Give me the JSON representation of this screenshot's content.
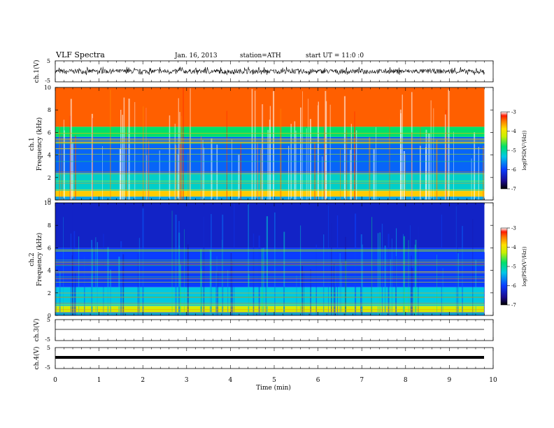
{
  "header": {
    "title": "VLF Spectra",
    "date": "Jan. 16, 2013",
    "station": "station=ATH",
    "start": "start UT =  11:0 :0"
  },
  "chart_data": [
    {
      "type": "line",
      "id": "ch1",
      "ylabel": "ch.1(V)",
      "ylim": [
        -5,
        5
      ],
      "yticks": [
        "5",
        "-5"
      ],
      "signal": {
        "center": 0,
        "amplitude_range": [
          -1.8,
          2.2
        ],
        "character": "broadband noise with spikes"
      },
      "xlim": [
        0,
        10
      ]
    },
    {
      "type": "heatmap",
      "id": "ch1-spectrogram",
      "ylabel": "ch.1\nFrequency (kHz)",
      "ylabel_lines": [
        "ch.1",
        "Frequency (kHz)"
      ],
      "ylim": [
        0,
        10
      ],
      "yticks": [
        "0",
        "2",
        "4",
        "6",
        "8",
        "10"
      ],
      "xlim": [
        0,
        9.8
      ],
      "colorbar": {
        "label": "log(PSD(V²/Hz))",
        "range": [
          -7,
          -3
        ],
        "ticks": [
          "-3",
          "-4",
          "-5",
          "-6",
          "-7"
        ]
      },
      "bands_kHz_logPSD": [
        {
          "from": 6.5,
          "to": 10,
          "level": -3.4
        },
        {
          "from": 5.6,
          "to": 6.5,
          "level": -4.8
        },
        {
          "from": 2.4,
          "to": 5.6,
          "level": -5.8
        },
        {
          "from": 0.8,
          "to": 2.4,
          "level": -5.2
        },
        {
          "from": 0.3,
          "to": 0.8,
          "level": -3.8
        },
        {
          "from": 0,
          "to": 0.3,
          "level": -5.5
        }
      ]
    },
    {
      "type": "heatmap",
      "id": "ch2-spectrogram",
      "ylabel": "ch.2\nFrequency (kHz)",
      "ylabel_lines": [
        "ch.2",
        "Frequency (kHz)"
      ],
      "ylim": [
        0,
        10
      ],
      "yticks": [
        "0",
        "2",
        "4",
        "6",
        "8",
        "10"
      ],
      "xlim": [
        0,
        9.8
      ],
      "colorbar": {
        "label": "log(PSD(V²/Hz))",
        "range": [
          -7,
          -3
        ],
        "ticks": [
          "-3",
          "-4",
          "-5",
          "-6",
          "-7"
        ]
      },
      "bands_kHz_logPSD": [
        {
          "from": 6.0,
          "to": 10,
          "level": -6.3
        },
        {
          "from": 2.5,
          "to": 6.0,
          "level": -6.0
        },
        {
          "from": 0.8,
          "to": 2.5,
          "level": -5.3
        },
        {
          "from": 0.3,
          "to": 0.8,
          "level": -4.2
        },
        {
          "from": 0,
          "to": 0.3,
          "level": -5.6
        }
      ]
    },
    {
      "type": "line",
      "id": "ch3",
      "ylabel": "ch.3(V)",
      "ylim": [
        -5,
        5
      ],
      "yticks": [
        "5",
        "-5"
      ],
      "signal": {
        "center": 0,
        "amplitude_range": [
          -0.1,
          0.1
        ],
        "character": "flat"
      },
      "xlim": [
        0,
        9.8
      ]
    },
    {
      "type": "line",
      "id": "ch4",
      "ylabel": "ch.4(V)",
      "ylim": [
        -5,
        5
      ],
      "yticks": [
        "5",
        "-5"
      ],
      "signal": {
        "center": 0,
        "amplitude_range": [
          -0.4,
          0.4
        ],
        "character": "thick flat band"
      },
      "xlim": [
        0,
        9.8
      ]
    }
  ],
  "xaxis": {
    "label": "Time (min)",
    "range": [
      0,
      10
    ],
    "ticks": [
      "0",
      "1",
      "2",
      "3",
      "4",
      "5",
      "6",
      "7",
      "8",
      "9",
      "10"
    ]
  }
}
